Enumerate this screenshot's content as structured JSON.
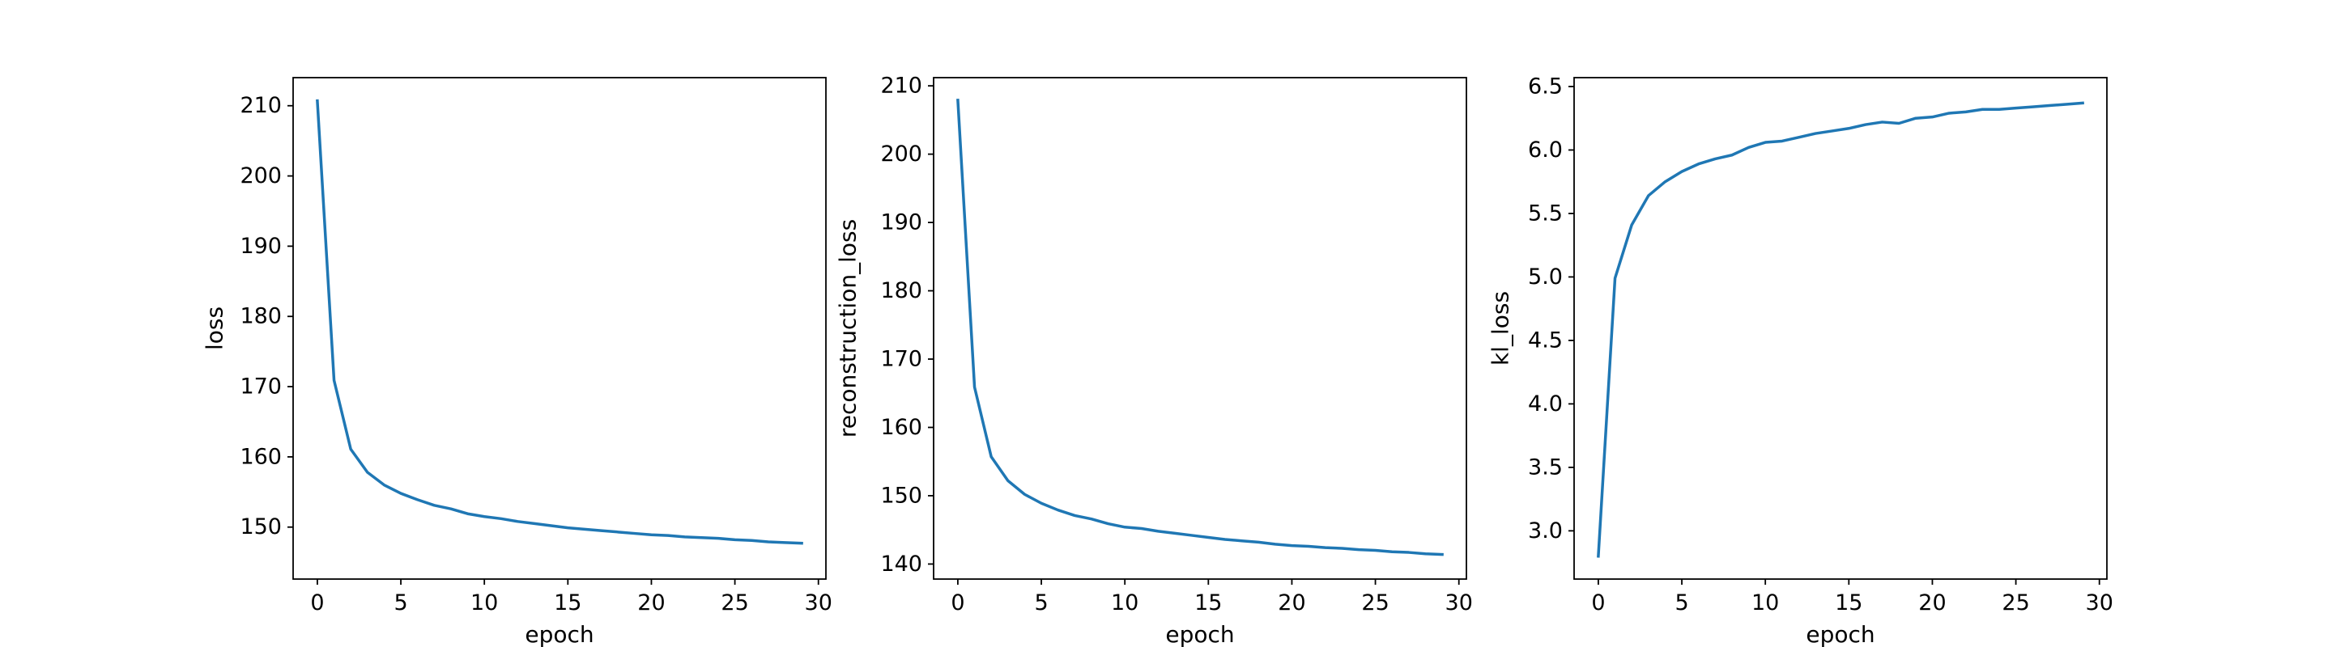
{
  "chart_data": [
    {
      "type": "line",
      "title": "",
      "xlabel": "epoch",
      "ylabel": "loss",
      "xlim": [
        -1.45,
        30.45
      ],
      "ylim": [
        142.6,
        214.0
      ],
      "xticks": [
        0,
        5,
        10,
        15,
        20,
        25,
        30
      ],
      "yticks": [
        150,
        160,
        170,
        180,
        190,
        200,
        210
      ],
      "tick_labels_x": [
        "0",
        "5",
        "10",
        "15",
        "20",
        "25",
        "30"
      ],
      "tick_labels_y": [
        "150",
        "160",
        "170",
        "180",
        "190",
        "200",
        "210"
      ],
      "color": "#1f77b4",
      "grid": false,
      "series": [
        {
          "x": [
            0,
            1,
            2,
            3,
            4,
            5,
            6,
            7,
            8,
            9,
            10,
            11,
            12,
            13,
            14,
            15,
            16,
            17,
            18,
            19,
            20,
            21,
            22,
            23,
            24,
            25,
            26,
            27,
            28,
            29
          ],
          "values": [
            210.7,
            170.9,
            161.1,
            157.8,
            156.0,
            154.8,
            153.9,
            153.1,
            152.6,
            151.9,
            151.5,
            151.2,
            150.8,
            150.5,
            150.2,
            149.9,
            149.7,
            149.5,
            149.3,
            149.1,
            148.9,
            148.8,
            148.6,
            148.5,
            148.4,
            148.2,
            148.1,
            147.9,
            147.8,
            147.7
          ]
        }
      ]
    },
    {
      "type": "line",
      "title": "",
      "xlabel": "epoch",
      "ylabel": "reconstruction_loss",
      "xlim": [
        -1.45,
        30.45
      ],
      "ylim": [
        137.8,
        211.2
      ],
      "xticks": [
        0,
        5,
        10,
        15,
        20,
        25,
        30
      ],
      "yticks": [
        140,
        150,
        160,
        170,
        180,
        190,
        200,
        210
      ],
      "tick_labels_x": [
        "0",
        "5",
        "10",
        "15",
        "20",
        "25",
        "30"
      ],
      "tick_labels_y": [
        "140",
        "150",
        "160",
        "170",
        "180",
        "190",
        "200",
        "210"
      ],
      "color": "#1f77b4",
      "grid": false,
      "series": [
        {
          "x": [
            0,
            1,
            2,
            3,
            4,
            5,
            6,
            7,
            8,
            9,
            10,
            11,
            12,
            13,
            14,
            15,
            16,
            17,
            18,
            19,
            20,
            21,
            22,
            23,
            24,
            25,
            26,
            27,
            28,
            29
          ],
          "values": [
            207.9,
            165.9,
            155.7,
            152.2,
            150.2,
            148.9,
            147.9,
            147.1,
            146.6,
            145.9,
            145.4,
            145.2,
            144.8,
            144.5,
            144.2,
            143.9,
            143.6,
            143.4,
            143.2,
            142.9,
            142.7,
            142.6,
            142.4,
            142.3,
            142.1,
            142.0,
            141.8,
            141.7,
            141.5,
            141.4
          ]
        }
      ]
    },
    {
      "type": "line",
      "title": "",
      "xlabel": "epoch",
      "ylabel": "kl_loss",
      "xlim": [
        -1.45,
        30.45
      ],
      "ylim": [
        2.62,
        6.57
      ],
      "xticks": [
        0,
        5,
        10,
        15,
        20,
        25,
        30
      ],
      "yticks": [
        3.0,
        3.5,
        4.0,
        4.5,
        5.0,
        5.5,
        6.0,
        6.5
      ],
      "tick_labels_x": [
        "0",
        "5",
        "10",
        "15",
        "20",
        "25",
        "30"
      ],
      "tick_labels_y": [
        "3.0",
        "3.5",
        "4.0",
        "4.5",
        "5.0",
        "5.5",
        "6.0",
        "6.5"
      ],
      "color": "#1f77b4",
      "grid": false,
      "series": [
        {
          "x": [
            0,
            1,
            2,
            3,
            4,
            5,
            6,
            7,
            8,
            9,
            10,
            11,
            12,
            13,
            14,
            15,
            16,
            17,
            18,
            19,
            20,
            21,
            22,
            23,
            24,
            25,
            26,
            27,
            28,
            29
          ],
          "values": [
            2.8,
            4.99,
            5.41,
            5.64,
            5.75,
            5.83,
            5.89,
            5.93,
            5.96,
            6.02,
            6.06,
            6.07,
            6.1,
            6.13,
            6.15,
            6.17,
            6.2,
            6.22,
            6.21,
            6.25,
            6.26,
            6.29,
            6.3,
            6.32,
            6.32,
            6.33,
            6.34,
            6.35,
            6.36,
            6.37
          ]
        }
      ]
    }
  ]
}
